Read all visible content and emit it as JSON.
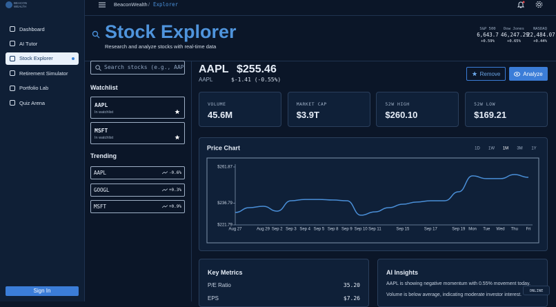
{
  "sidebar": {
    "logo": "BEACON WEALTH",
    "nav": [
      "Dashboard",
      "AI Tutor",
      "Stock Explorer",
      "Retirement Simulator",
      "Portfolio Lab",
      "Quiz Arena"
    ],
    "sign_in": "Sign In"
  },
  "topbar": {
    "brand": "BeaconWealth",
    "separator": "/",
    "page": "Explorer"
  },
  "header": {
    "title": "Stock Explorer",
    "subtitle": "Research and analyze stocks with real-time data",
    "indices": [
      {
        "name": "S&P 500",
        "value": "6,643.7",
        "change": "+0.59%"
      },
      {
        "name": "Dow Jones",
        "value": "46,247.29",
        "change": "+0.65%"
      },
      {
        "name": "NASDAQ",
        "value": "22,484.07",
        "change": "+0.44%"
      }
    ]
  },
  "search": {
    "placeholder": "Search stocks (e.g., AAPL, MSFT)"
  },
  "watchlist": {
    "title": "Watchlist",
    "items": [
      {
        "symbol": "AAPL",
        "note": "In watchlist"
      },
      {
        "symbol": "MSFT",
        "note": "In watchlist"
      }
    ]
  },
  "trending": {
    "title": "Trending",
    "items": [
      {
        "symbol": "AAPL",
        "change": "-0.6%"
      },
      {
        "symbol": "GOOGL",
        "change": "+0.3%"
      },
      {
        "symbol": "MSFT",
        "change": "+0.9%"
      }
    ]
  },
  "quote": {
    "symbol": "AAPL",
    "price": "$255.46",
    "sub_symbol": "AAPL",
    "change": "$-1.41 (-0.55%)",
    "remove": "Remove",
    "analyze": "Analyze"
  },
  "stats": [
    {
      "label": "VOLUME",
      "value": "45.6M"
    },
    {
      "label": "MARKET CAP",
      "value": "$3.9T"
    },
    {
      "label": "52W HIGH",
      "value": "$260.10"
    },
    {
      "label": "52W LOW",
      "value": "$169.21"
    }
  ],
  "chart_data": {
    "type": "line",
    "title": "Price Chart",
    "ranges": [
      "1D",
      "1W",
      "1M",
      "3M",
      "1Y"
    ],
    "categories": [
      "Aug 27",
      null,
      "Aug 29",
      "Sep 2",
      "Sep 3",
      "Sep 4",
      "Sep 5",
      "Sep 8",
      "Sep 9",
      "Sep 10",
      "Sep 11",
      null,
      "Sep 15",
      null,
      "Sep 17",
      null,
      "Sep 19",
      "Mon",
      "Tue",
      "Wed",
      "Thu",
      "Fri"
    ],
    "values": [
      230.4,
      233.7,
      234.7,
      231.3,
      238.5,
      239.4,
      239.4,
      239.0,
      238.5,
      228.5,
      230.8,
      233.7,
      236.1,
      237.6,
      238.5,
      238.5,
      244.7,
      255.7,
      253.8,
      253.8,
      256.6,
      254.7
    ],
    "color": "#4a8fd8",
    "ylim": [
      221.79,
      261.87
    ],
    "yticks": [
      {
        "value": 221.79,
        "label": "$221.79"
      },
      {
        "value": 236.79,
        "label": "$236.79"
      },
      {
        "value": 261.87,
        "label": "$261.87"
      }
    ]
  },
  "key_metrics": {
    "title": "Key Metrics",
    "rows": [
      [
        "P/E Ratio",
        "35.20"
      ],
      [
        "EPS",
        "$7.26"
      ]
    ]
  },
  "ai_insights": {
    "title": "AI Insights",
    "lines": [
      "AAPL is showing negative momentum with 0.55% movement today.",
      "Volume is below average, indicating moderate investor interest."
    ]
  },
  "status": "ONLINE"
}
